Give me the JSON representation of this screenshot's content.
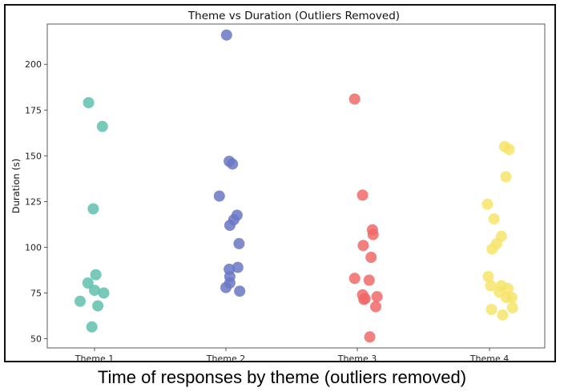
{
  "caption": "Time of responses by theme (outliers removed)",
  "chart_data": {
    "type": "scatter",
    "title": "Theme vs Duration (Outliers Removed)",
    "xlabel": "",
    "ylabel": "Duration (s)",
    "categories": [
      "Theme 1",
      "Theme 2",
      "Theme 3",
      "Theme 4"
    ],
    "ylim": [
      45,
      222
    ],
    "yticks": [
      50,
      75,
      100,
      125,
      150,
      175,
      200
    ],
    "grid": false,
    "series": [
      {
        "category": "Theme 1",
        "color": "#5fbfad",
        "points": [
          [
            -0.09,
            179
          ],
          [
            0.12,
            166
          ],
          [
            -0.02,
            121
          ],
          [
            0.02,
            85
          ],
          [
            -0.1,
            80.5
          ],
          [
            0.0,
            76.5
          ],
          [
            0.14,
            75
          ],
          [
            -0.22,
            70.5
          ],
          [
            0.05,
            68
          ],
          [
            -0.04,
            56.5
          ]
        ]
      },
      {
        "category": "Theme 2",
        "color": "#6a77c4",
        "points": [
          [
            0.01,
            216
          ],
          [
            0.05,
            147
          ],
          [
            0.1,
            145.5
          ],
          [
            -0.1,
            128
          ],
          [
            0.17,
            117.5
          ],
          [
            0.12,
            115
          ],
          [
            0.06,
            112
          ],
          [
            0.2,
            102
          ],
          [
            0.05,
            88
          ],
          [
            0.18,
            89
          ],
          [
            0.06,
            84
          ],
          [
            0.06,
            80.5
          ],
          [
            0.0,
            78
          ],
          [
            0.21,
            76
          ]
        ]
      },
      {
        "category": "Theme 3",
        "color": "#ef6a67",
        "points": [
          [
            -0.04,
            181
          ],
          [
            0.08,
            128.5
          ],
          [
            0.23,
            109.5
          ],
          [
            0.24,
            107
          ],
          [
            0.09,
            101
          ],
          [
            0.21,
            94.5
          ],
          [
            -0.04,
            83
          ],
          [
            0.18,
            82
          ],
          [
            0.3,
            73
          ],
          [
            0.08,
            74
          ],
          [
            0.1,
            71.5
          ],
          [
            0.12,
            72
          ],
          [
            0.28,
            67.5
          ],
          [
            0.19,
            51
          ]
        ]
      },
      {
        "category": "Theme 4",
        "color": "#f6e46a",
        "points": [
          [
            0.23,
            155
          ],
          [
            0.3,
            153.5
          ],
          [
            0.25,
            138.5
          ],
          [
            -0.03,
            123.5
          ],
          [
            0.07,
            115.5
          ],
          [
            0.11,
            102
          ],
          [
            0.04,
            99
          ],
          [
            0.18,
            106
          ],
          [
            -0.02,
            84
          ],
          [
            0.02,
            79
          ],
          [
            0.18,
            79
          ],
          [
            0.15,
            75.5
          ],
          [
            0.28,
            77.5
          ],
          [
            0.26,
            72.5
          ],
          [
            0.34,
            72.5
          ],
          [
            0.03,
            66
          ],
          [
            0.2,
            63
          ],
          [
            0.35,
            67
          ]
        ]
      }
    ]
  }
}
